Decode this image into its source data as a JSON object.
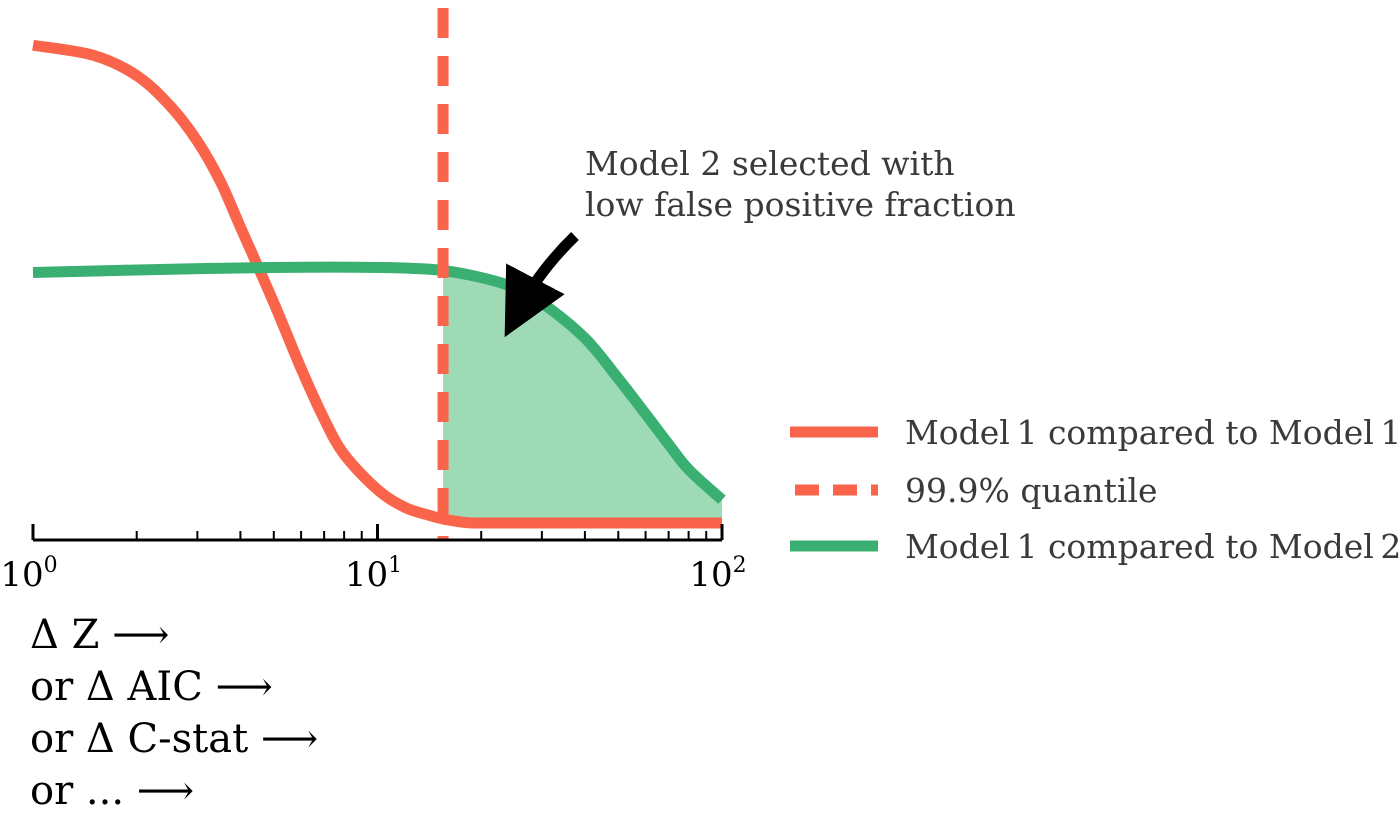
{
  "chart_data": {
    "type": "line",
    "x_scale": "log",
    "xlim": [
      1,
      100
    ],
    "ylim": [
      0,
      1
    ],
    "grid": false,
    "legend_position": "right",
    "xticks": [
      {
        "value": 1,
        "base": "10",
        "exp": "0"
      },
      {
        "value": 10,
        "base": "10",
        "exp": "1"
      },
      {
        "value": 100,
        "base": "10",
        "exp": "2"
      }
    ],
    "xlabel_lines": [
      "Δ Z ⟶",
      "or Δ AIC ⟶",
      "or Δ C-stat ⟶",
      "or ... ⟶"
    ],
    "series": [
      {
        "name": "Model 1 compared to Model 1",
        "color": "#F9644A",
        "style": "solid",
        "x": [
          1,
          1.5,
          2,
          2.5,
          3,
          3.5,
          4,
          5,
          6,
          7,
          8,
          10,
          12,
          14,
          15.5,
          18,
          20,
          30,
          50,
          100
        ],
        "y": [
          0.95,
          0.93,
          0.89,
          0.83,
          0.76,
          0.68,
          0.59,
          0.44,
          0.31,
          0.21,
          0.14,
          0.07,
          0.035,
          0.02,
          0.012,
          0.005,
          0.004,
          0.004,
          0.004,
          0.004
        ]
      },
      {
        "name": "99.9% quantile",
        "color": "#F9644A",
        "style": "dashed",
        "x_value": 15.5
      },
      {
        "name": "Model 1 compared to Model 2",
        "color": "#3AAF72",
        "style": "solid",
        "x": [
          1,
          2,
          5,
          10,
          15,
          20,
          25,
          30,
          40,
          50,
          60,
          70,
          80,
          100
        ],
        "y": [
          0.5,
          0.505,
          0.51,
          0.51,
          0.505,
          0.49,
          0.47,
          0.44,
          0.37,
          0.29,
          0.22,
          0.16,
          0.11,
          0.05
        ]
      }
    ],
    "shaded_region": {
      "x_from": 15.5,
      "under_series": 2,
      "color": "#9FDAB7"
    },
    "annotation": {
      "lines": [
        "Model 2 selected with",
        "low false positive fraction"
      ]
    }
  }
}
